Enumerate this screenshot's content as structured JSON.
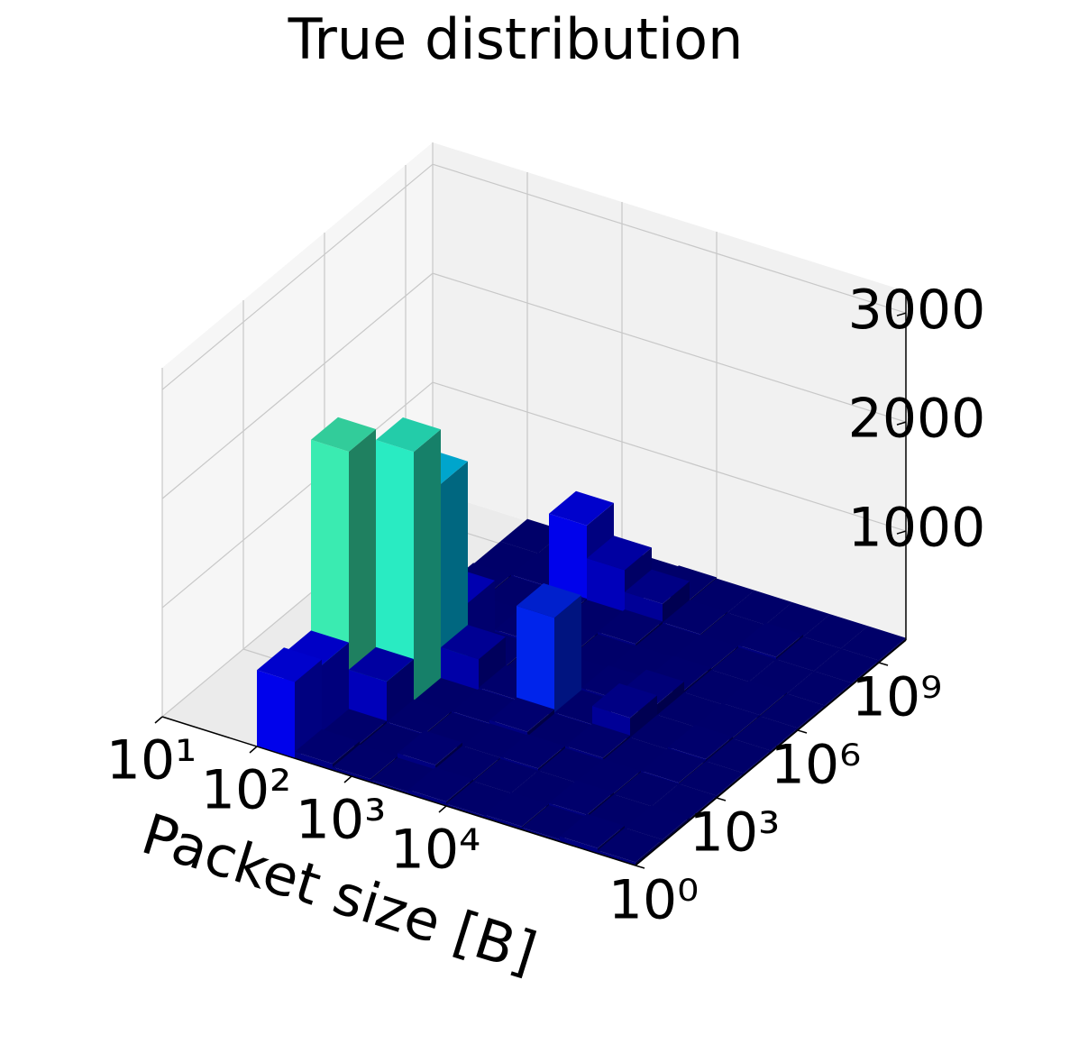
{
  "chart_data": {
    "type": "bar3d",
    "title": "True distribution",
    "xlabel": "Packet size [B]",
    "xscale": "log",
    "yscale": "log",
    "x_edges": [
      100,
      251.19,
      630.96,
      1584.89,
      3981.07,
      10000,
      25118.86,
      63095.73,
      158489.32,
      398107.17,
      1000000
    ],
    "y_edges": [
      1,
      10,
      100,
      1000,
      10000,
      100000,
      1000000,
      10000000,
      100000000,
      1000000000,
      10000000000
    ],
    "values": [
      [
        700,
        60,
        30,
        20,
        40,
        20,
        30,
        20,
        50,
        30
      ],
      [
        650,
        40,
        20,
        60,
        30,
        20,
        20,
        40,
        20,
        30
      ],
      [
        2400,
        400,
        30,
        20,
        30,
        40,
        20,
        30,
        20,
        20
      ],
      [
        850,
        2300,
        20,
        30,
        60,
        20,
        40,
        20,
        30,
        20
      ],
      [
        400,
        1800,
        300,
        40,
        900,
        30,
        200,
        20,
        40,
        20
      ],
      [
        60,
        500,
        30,
        20,
        30,
        50,
        120,
        20,
        30,
        20
      ],
      [
        40,
        30,
        50,
        30,
        20,
        30,
        40,
        20,
        30,
        20
      ],
      [
        30,
        20,
        30,
        20,
        40,
        20,
        30,
        20,
        20,
        20
      ],
      [
        20,
        30,
        700,
        400,
        200,
        30,
        20,
        40,
        20,
        20
      ],
      [
        20,
        20,
        30,
        20,
        30,
        20,
        20,
        20,
        20,
        20
      ]
    ],
    "colormap": "jet",
    "clim": [
      0,
      5500
    ],
    "xlim": [
      10,
      1000000
    ],
    "ylim": [
      1,
      10000000000
    ],
    "zlim": [
      0,
      3200
    ],
    "xticks": [
      {
        "value": 10,
        "label": "10¹"
      },
      {
        "value": 100,
        "label": "10²"
      },
      {
        "value": 1000,
        "label": "10³"
      },
      {
        "value": 10000,
        "label": "10⁴"
      }
    ],
    "yticks": [
      {
        "value": 1,
        "label": "10⁰"
      },
      {
        "value": 1000,
        "label": "10³"
      },
      {
        "value": 1000000,
        "label": "10⁶"
      },
      {
        "value": 1000000000,
        "label": "10⁹"
      }
    ],
    "zticks": [
      1000,
      2000,
      3000
    ],
    "grid": true
  }
}
